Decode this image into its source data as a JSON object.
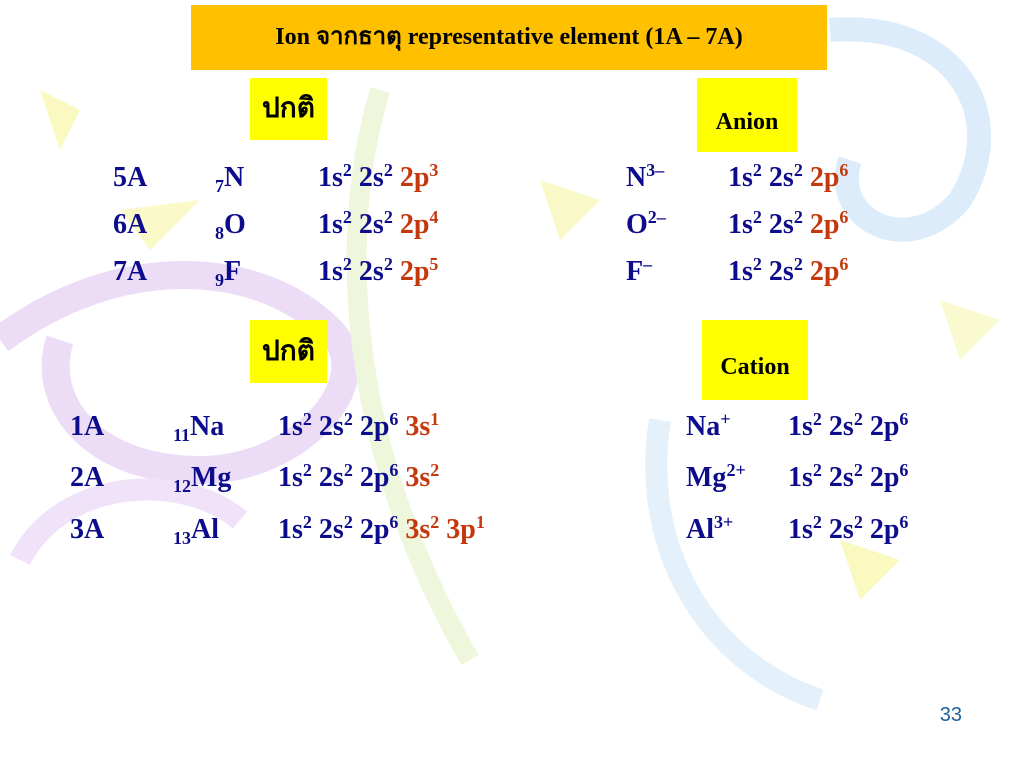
{
  "title": "Ion  จากธาตุ  representative  element  (1A – 7A)",
  "sections": [
    {
      "label": "ปกติ",
      "tag": "Anion",
      "rows": [
        {
          "group": "5A",
          "number": "7",
          "symbol": "N",
          "config": [
            {
              "text": "1s",
              "sup": "2",
              "color": "#0c0c8c"
            },
            {
              "text": "2s",
              "sup": "2",
              "color": "#0c0c8c"
            },
            {
              "text": "2p",
              "sup": "3",
              "color": "#c4380c"
            }
          ],
          "ion": {
            "symbol": "N",
            "charge": "3–"
          },
          "ion_config": [
            {
              "text": "1s",
              "sup": "2",
              "color": "#0c0c8c"
            },
            {
              "text": "2s",
              "sup": "2",
              "color": "#0c0c8c"
            },
            {
              "text": "2p",
              "sup": "6",
              "color": "#c4380c"
            }
          ]
        },
        {
          "group": "6A",
          "number": "8",
          "symbol": "O",
          "config": [
            {
              "text": "1s",
              "sup": "2",
              "color": "#0c0c8c"
            },
            {
              "text": "2s",
              "sup": "2",
              "color": "#0c0c8c"
            },
            {
              "text": "2p",
              "sup": "4",
              "color": "#c4380c"
            }
          ],
          "ion": {
            "symbol": "O",
            "charge": "2–"
          },
          "ion_config": [
            {
              "text": "1s",
              "sup": "2",
              "color": "#0c0c8c"
            },
            {
              "text": "2s",
              "sup": "2",
              "color": "#0c0c8c"
            },
            {
              "text": "2p",
              "sup": "6",
              "color": "#c4380c"
            }
          ]
        },
        {
          "group": "7A",
          "number": "9",
          "symbol": "F",
          "config": [
            {
              "text": "1s",
              "sup": "2",
              "color": "#0c0c8c"
            },
            {
              "text": "2s",
              "sup": "2",
              "color": "#0c0c8c"
            },
            {
              "text": "2p",
              "sup": "5",
              "color": "#c4380c"
            }
          ],
          "ion": {
            "symbol": "F",
            "charge": "–"
          },
          "ion_config": [
            {
              "text": "1s",
              "sup": "2",
              "color": "#0c0c8c"
            },
            {
              "text": "2s",
              "sup": "2",
              "color": "#0c0c8c"
            },
            {
              "text": "2p",
              "sup": "6",
              "color": "#c4380c"
            }
          ]
        }
      ]
    },
    {
      "label": "ปกติ",
      "tag": "Cation",
      "rows": [
        {
          "group": "1A",
          "number": "11",
          "symbol": "Na",
          "config": [
            {
              "text": "1s",
              "sup": "2",
              "color": "#0c0c8c"
            },
            {
              "text": "2s",
              "sup": "2",
              "color": "#0c0c8c"
            },
            {
              "text": "2p",
              "sup": "6",
              "color": "#0c0c8c"
            },
            {
              "text": "3s",
              "sup": "1",
              "color": "#c4380c"
            }
          ],
          "ion": {
            "symbol": "Na",
            "charge": "+"
          },
          "ion_config": [
            {
              "text": "1s",
              "sup": "2",
              "color": "#0c0c8c"
            },
            {
              "text": "2s",
              "sup": "2",
              "color": "#0c0c8c"
            },
            {
              "text": "2p",
              "sup": "6",
              "color": "#0c0c8c"
            }
          ]
        },
        {
          "group": "2A",
          "number": "12",
          "symbol": "Mg",
          "config": [
            {
              "text": "1s",
              "sup": "2",
              "color": "#0c0c8c"
            },
            {
              "text": "2s",
              "sup": "2",
              "color": "#0c0c8c"
            },
            {
              "text": "2p",
              "sup": "6",
              "color": "#0c0c8c"
            },
            {
              "text": "3s",
              "sup": "2",
              "color": "#c4380c"
            }
          ],
          "ion": {
            "symbol": "Mg",
            "charge": "2+"
          },
          "ion_config": [
            {
              "text": "1s",
              "sup": "2",
              "color": "#0c0c8c"
            },
            {
              "text": "2s",
              "sup": "2",
              "color": "#0c0c8c"
            },
            {
              "text": "2p",
              "sup": "6",
              "color": "#0c0c8c"
            }
          ]
        },
        {
          "group": "3A",
          "number": "13",
          "symbol": "Al",
          "config": [
            {
              "text": "1s",
              "sup": "2",
              "color": "#0c0c8c"
            },
            {
              "text": "2s",
              "sup": "2",
              "color": "#0c0c8c"
            },
            {
              "text": "2p",
              "sup": "6",
              "color": "#0c0c8c"
            },
            {
              "text": "3s",
              "sup": "2",
              "color": "#c4380c"
            },
            {
              "text": "3p",
              "sup": "1",
              "color": "#c4380c"
            }
          ],
          "ion": {
            "symbol": "Al",
            "charge": "3+"
          },
          "ion_config": [
            {
              "text": "1s",
              "sup": "2",
              "color": "#0c0c8c"
            },
            {
              "text": "2s",
              "sup": "2",
              "color": "#0c0c8c"
            },
            {
              "text": "2p",
              "sup": "6",
              "color": "#0c0c8c"
            }
          ]
        }
      ]
    }
  ],
  "page_number": "33"
}
